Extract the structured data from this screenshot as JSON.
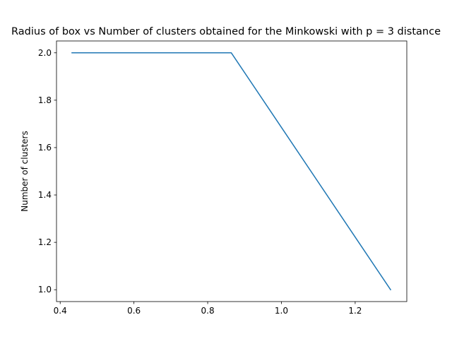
{
  "chart_data": {
    "type": "line",
    "title": "Radius of box vs Number of clusters obtained for the Minkowski with p = 3 distance",
    "xlabel": "",
    "ylabel": "Number of clusters",
    "xlim": [
      0.39,
      1.34
    ],
    "ylim": [
      0.95,
      2.05
    ],
    "xticks": [
      0.4,
      0.6,
      0.8,
      1.0,
      1.2
    ],
    "xtick_labels": [
      "0.4",
      "0.6",
      "0.8",
      "1.0",
      "1.2"
    ],
    "yticks": [
      1.0,
      1.2,
      1.4,
      1.6,
      1.8,
      2.0
    ],
    "ytick_labels": [
      "1.0",
      "1.2",
      "1.4",
      "1.6",
      "1.8",
      "2.0"
    ],
    "grid": false,
    "legend": "none",
    "series": [
      {
        "color": "#1f77b4",
        "x": [
          0.432,
          0.864,
          1.296
        ],
        "y": [
          2,
          2,
          1
        ]
      }
    ]
  }
}
